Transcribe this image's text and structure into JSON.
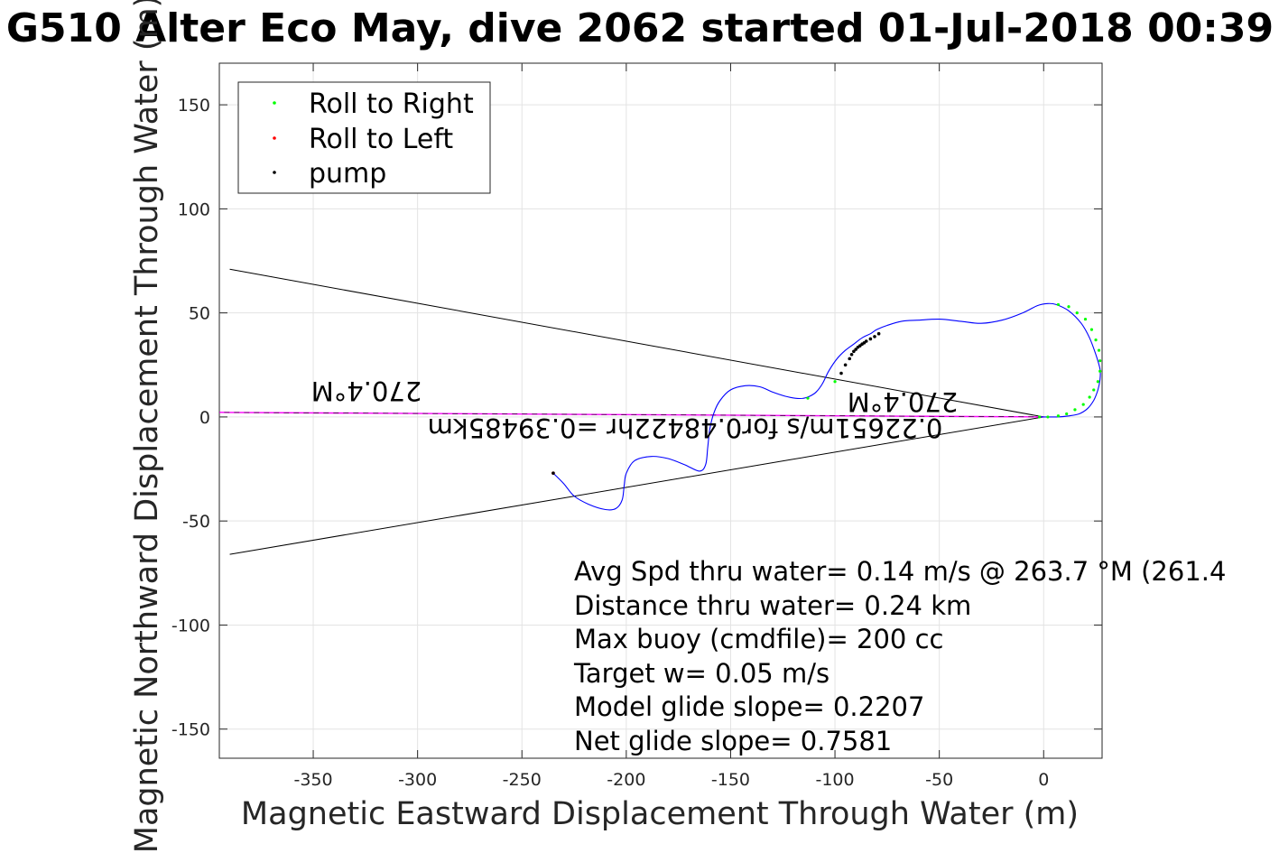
{
  "chart_data": {
    "type": "scatter",
    "title": "G510 Alter Eco May, dive 2062 started 01-Jul-2018 00:39",
    "xlabel": "Magnetic Eastward Displacement Through Water (m)",
    "ylabel": "Magnetic Northward Displacement Through Water (m)",
    "xlim": [
      -395,
      28
    ],
    "ylim": [
      -164,
      170
    ],
    "x_ticks": [
      -350,
      -300,
      -250,
      -200,
      -150,
      -100,
      -50,
      0
    ],
    "y_ticks": [
      -150,
      -100,
      -50,
      0,
      50,
      100,
      150
    ],
    "grid": true,
    "legend_position": "top-left",
    "legend": [
      {
        "label": "Roll to Right",
        "color": "#00ff00"
      },
      {
        "label": "Roll to Left",
        "color": "#ff0000"
      },
      {
        "label": "pump",
        "color": "#000000"
      }
    ],
    "track": {
      "color": "#0000ff",
      "x": [
        -235,
        -230,
        -225,
        -218,
        -210,
        -205,
        -202,
        -201,
        -200,
        -196,
        -188,
        -180,
        -172,
        -165,
        -162,
        -161,
        -160,
        -158,
        -155,
        -150,
        -143,
        -136,
        -130,
        -124,
        -119,
        -115,
        -112,
        -109,
        -106,
        -103,
        -99,
        -95,
        -91,
        -87,
        -83,
        -80,
        -75,
        -68,
        -60,
        -50,
        -40,
        -30,
        -20,
        -10,
        -3,
        2,
        6,
        12,
        18,
        22,
        25,
        27,
        27,
        26,
        24,
        21,
        17,
        12,
        7,
        2,
        -1,
        -2
      ],
      "y": [
        -27,
        -32,
        -38,
        -42,
        -44.5,
        -44,
        -40,
        -33,
        -27,
        -21,
        -19,
        -20,
        -23,
        -26,
        -23,
        -15,
        -6,
        2,
        8,
        13,
        15,
        14.5,
        12,
        10,
        9,
        9,
        10,
        12,
        16,
        22,
        28,
        32,
        35,
        38,
        40,
        42,
        44,
        46,
        46.5,
        47,
        46,
        45,
        46.5,
        50,
        53.5,
        54.5,
        54,
        51,
        45,
        38,
        30,
        23,
        18,
        13,
        8,
        4,
        1.5,
        0.5,
        0,
        0,
        0,
        0
      ]
    },
    "roll_right": {
      "x": [
        -113,
        -100,
        7,
        12,
        16,
        20,
        23,
        25,
        26.5,
        27,
        27,
        26,
        24,
        22,
        19,
        15,
        11,
        7,
        2,
        -2
      ],
      "y": [
        9,
        17,
        54,
        53,
        50,
        47,
        42,
        37,
        32,
        27,
        22,
        17,
        13,
        9.5,
        6,
        3.5,
        1.5,
        0.5,
        0,
        0
      ]
    },
    "roll_left": {
      "x": [
        -235
      ],
      "y": [
        -27
      ]
    },
    "pump": {
      "x": [
        -97,
        -95,
        -93,
        -92,
        -91,
        -90,
        -89,
        -88,
        -87,
        -86,
        -85,
        -83,
        -81,
        -79,
        -235
      ],
      "y": [
        21,
        25,
        28,
        30,
        31.5,
        32.5,
        33.5,
        34.2,
        35,
        35.6,
        36.4,
        37.5,
        38.6,
        40,
        -27
      ]
    },
    "current_line": {
      "color": "#ff00ff",
      "x": [
        0,
        -395
      ],
      "y": [
        0,
        2.2
      ]
    },
    "cone_lines": {
      "color": "#000000",
      "lines": [
        {
          "x": [
            0,
            -390
          ],
          "y": [
            0,
            71
          ]
        },
        {
          "x": [
            0,
            -390
          ],
          "y": [
            0,
            -66
          ]
        }
      ]
    },
    "current_labels": {
      "heading_left": "270.4°M",
      "heading_right": "270.4°M",
      "speed": "0.22651m/s for0.48422hr =0.39485km"
    },
    "annotations": [
      "Avg Spd thru water=  0.14 m/s @ 263.7 °M (261.4",
      "Distance thru water=  0.24 km",
      "Max buoy (cmdfile)= 200 cc",
      "Target w= 0.05 m/s",
      "Model glide slope= 0.2207",
      "Net glide slope= 0.7581"
    ]
  }
}
